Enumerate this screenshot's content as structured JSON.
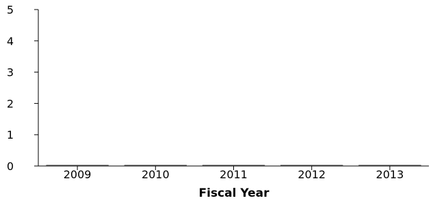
{
  "chart_data": {
    "type": "bar",
    "title": "",
    "xlabel": "Fiscal Year",
    "ylabel": "",
    "categories": [
      "2009",
      "2010",
      "2011",
      "2012",
      "2013"
    ],
    "values": [
      0,
      0,
      0,
      0,
      0
    ],
    "ylim": [
      0,
      5
    ],
    "yticks": [
      "0",
      "1",
      "2",
      "3",
      "4",
      "5"
    ],
    "grid": false,
    "legend": "none",
    "bar_color": "#333333",
    "axis_color": "#000000"
  }
}
